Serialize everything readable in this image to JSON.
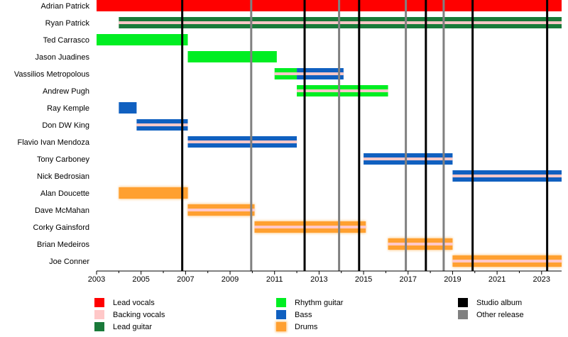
{
  "chart_data": {
    "type": "timeline",
    "xlim": [
      2003,
      2023.9
    ],
    "ticks": [
      "2003",
      "2005",
      "2007",
      "2009",
      "2011",
      "2013",
      "2015",
      "2017",
      "2019",
      "2021",
      "2023"
    ],
    "roles": {
      "lead_vocals": {
        "label": "Lead vocals",
        "color": "#ff0000"
      },
      "backing_vocals": {
        "label": "Backing vocals",
        "color": "#ffc8c8"
      },
      "lead_guitar": {
        "label": "Lead guitar",
        "color": "#1a7a3a"
      },
      "rhythm_guitar": {
        "label": "Rhythm guitar",
        "color": "#00ee22"
      },
      "bass": {
        "label": "Bass",
        "color": "#1060c0"
      },
      "drums": {
        "label": "Drums",
        "color": "#ffa030"
      }
    },
    "release_types": {
      "studio": {
        "label": "Studio album",
        "color": "#000000"
      },
      "other": {
        "label": "Other release",
        "color": "#808080"
      }
    },
    "releases": [
      {
        "year": 2006.85,
        "type": "studio"
      },
      {
        "year": 2009.95,
        "type": "other"
      },
      {
        "year": 2012.35,
        "type": "studio"
      },
      {
        "year": 2013.9,
        "type": "other"
      },
      {
        "year": 2014.8,
        "type": "studio"
      },
      {
        "year": 2016.9,
        "type": "other"
      },
      {
        "year": 2017.8,
        "type": "studio"
      },
      {
        "year": 2018.6,
        "type": "other"
      },
      {
        "year": 2019.9,
        "type": "studio"
      },
      {
        "year": 2023.25,
        "type": "studio"
      }
    ],
    "members": [
      {
        "name": "Adrian Patrick",
        "stints": [
          {
            "role": "lead_vocals",
            "start": 2003.0,
            "end": 2023.9
          }
        ]
      },
      {
        "name": "Ryan Patrick",
        "stints": [
          {
            "role": "lead_guitar",
            "start": 2004.0,
            "end": 2023.9,
            "secondary": "backing_vocals"
          }
        ]
      },
      {
        "name": "Ted Carrasco",
        "stints": [
          {
            "role": "rhythm_guitar",
            "start": 2003.0,
            "end": 2007.1
          }
        ]
      },
      {
        "name": "Jason Juadines",
        "stints": [
          {
            "role": "rhythm_guitar",
            "start": 2007.1,
            "end": 2011.1
          }
        ]
      },
      {
        "name": "Vassilios Metropolous",
        "stints": [
          {
            "role": "rhythm_guitar",
            "start": 2011.0,
            "end": 2012.0,
            "secondary": "backing_vocals"
          },
          {
            "role": "bass",
            "start": 2012.0,
            "end": 2014.1,
            "secondary": "backing_vocals"
          }
        ]
      },
      {
        "name": "Andrew Pugh",
        "stints": [
          {
            "role": "rhythm_guitar",
            "start": 2012.0,
            "end": 2016.1,
            "secondary": "backing_vocals"
          }
        ]
      },
      {
        "name": "Ray Kemple",
        "stints": [
          {
            "role": "bass",
            "start": 2004.0,
            "end": 2004.8
          }
        ]
      },
      {
        "name": "Don DW King",
        "stints": [
          {
            "role": "bass",
            "start": 2004.8,
            "end": 2007.1,
            "secondary": "backing_vocals"
          }
        ]
      },
      {
        "name": "Flavio Ivan Mendoza",
        "stints": [
          {
            "role": "bass",
            "start": 2007.1,
            "end": 2012.0,
            "secondary": "backing_vocals"
          }
        ]
      },
      {
        "name": "Tony Carboney",
        "stints": [
          {
            "role": "bass",
            "start": 2015.0,
            "end": 2019.0,
            "secondary": "backing_vocals"
          }
        ]
      },
      {
        "name": "Nick Bedrosian",
        "stints": [
          {
            "role": "bass",
            "start": 2019.0,
            "end": 2023.9,
            "secondary": "backing_vocals"
          }
        ]
      },
      {
        "name": "Alan Doucette",
        "stints": [
          {
            "role": "drums",
            "start": 2004.0,
            "end": 2007.1
          }
        ]
      },
      {
        "name": "Dave McMahan",
        "stints": [
          {
            "role": "drums",
            "start": 2007.1,
            "end": 2010.1,
            "secondary": "backing_vocals"
          }
        ]
      },
      {
        "name": "Corky Gainsford",
        "stints": [
          {
            "role": "drums",
            "start": 2010.1,
            "end": 2015.1,
            "secondary": "backing_vocals"
          }
        ]
      },
      {
        "name": "Brian Medeiros",
        "stints": [
          {
            "role": "drums",
            "start": 2016.1,
            "end": 2019.0,
            "secondary": "backing_vocals"
          }
        ]
      },
      {
        "name": "Joe Conner",
        "stints": [
          {
            "role": "drums",
            "start": 2019.0,
            "end": 2023.9,
            "secondary": "backing_vocals"
          }
        ]
      }
    ]
  }
}
